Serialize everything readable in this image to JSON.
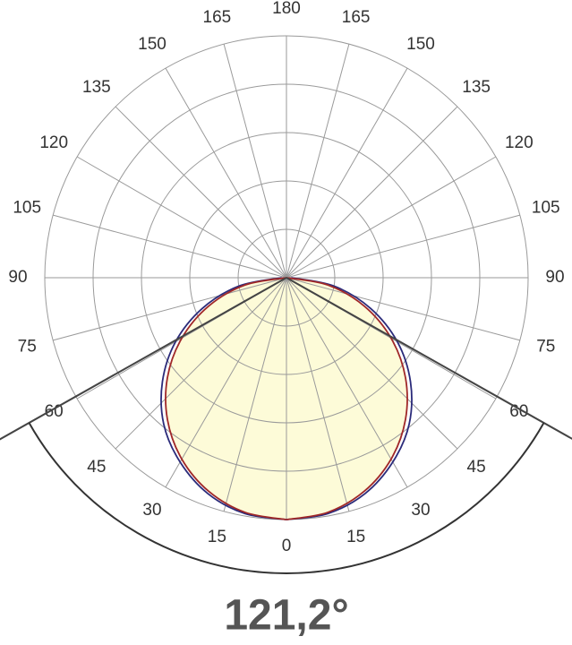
{
  "chart_data": {
    "type": "polar",
    "thetaticks": [
      0,
      15,
      30,
      45,
      60,
      75,
      90,
      105,
      120,
      135,
      150,
      165,
      180
    ],
    "rlim": [
      0,
      100
    ],
    "rticks": [
      20,
      40,
      60,
      80,
      100
    ],
    "angles": [
      0,
      10,
      20,
      30,
      40,
      50,
      60,
      70,
      80,
      90
    ],
    "series": [
      {
        "color": "#2b2b7a",
        "values": [
          100,
          99,
          95,
          88,
          79,
          67,
          53,
          37,
          20,
          2
        ]
      },
      {
        "color": "#a02828",
        "values": [
          100,
          98.5,
          94,
          86.6,
          76.6,
          64.3,
          50,
          34.2,
          17.4,
          0
        ]
      }
    ],
    "fill": "#fdfbd8",
    "beam_angle": {
      "value": 121.2,
      "label": "121,2°"
    }
  }
}
